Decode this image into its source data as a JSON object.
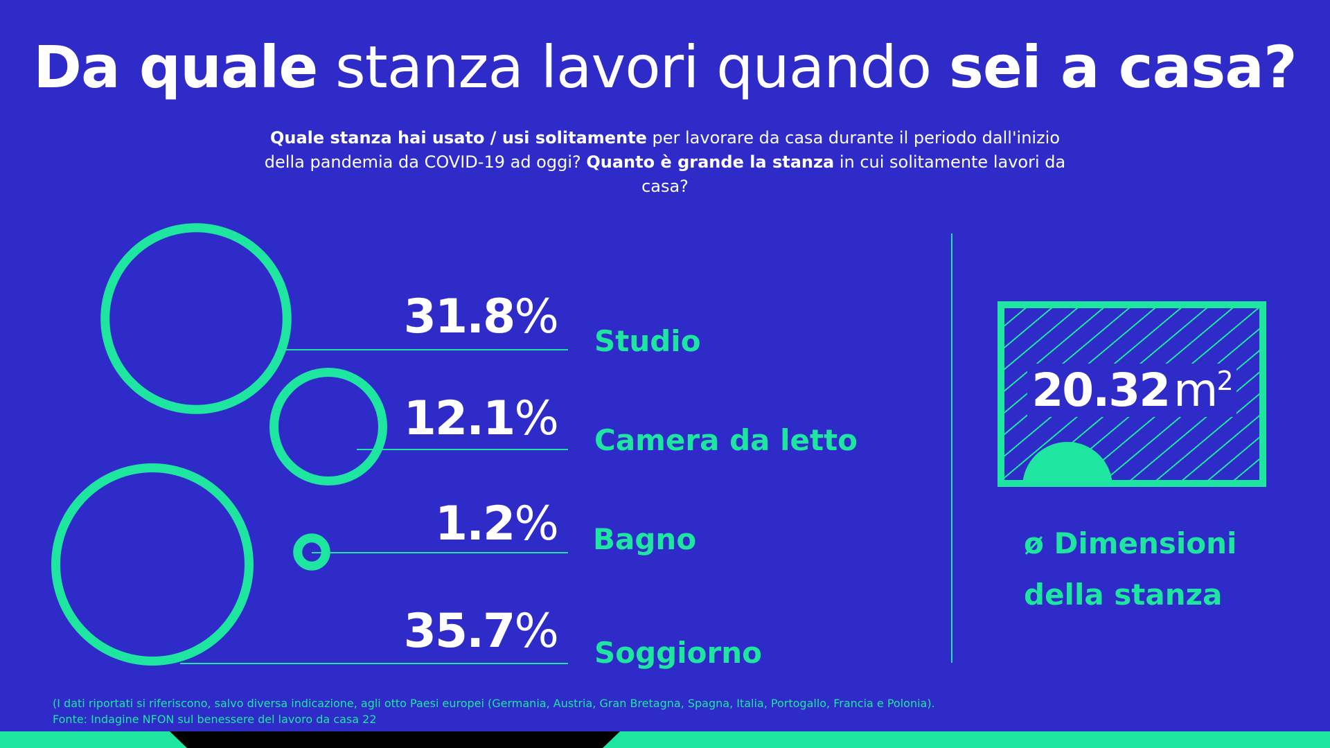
{
  "title": {
    "part1": "Da quale",
    "part2": " stanza lavori quando ",
    "part3": "sei a casa?"
  },
  "subtitle": {
    "b1": "Quale stanza hai usato / usi solitamente",
    "t1": " per lavorare da casa durante il periodo dall'inizio della pandemia da COVID-19 ad oggi? ",
    "b2": "Quanto è grande la stanza",
    "t2": " in cui solitamente lavori da casa?"
  },
  "chart_data": {
    "type": "bubble",
    "title": "Da quale stanza lavori quando sei a casa?",
    "unit": "%",
    "categories": [
      "Studio",
      "Camera da letto",
      "Bagno",
      "Soggiorno"
    ],
    "values": [
      31.8,
      12.1,
      1.2,
      35.7
    ],
    "value_labels": [
      "31.8",
      "12.1",
      "1.2",
      "35.7"
    ]
  },
  "room": {
    "value": "20.32",
    "unit": "m",
    "unit_exp": "2",
    "caption_line1": "ø Dimensioni",
    "caption_line2": "della stanza"
  },
  "footnote": {
    "line1": "(I dati riportati si riferiscono, salvo diversa indicazione, agli otto Paesi europei (Germania, Austria, Gran Bretagna, Spagna, Italia, Portogallo, Francia e Polonia).",
    "line2": "Fonte: Indagine NFON sul benessere del lavoro da casa 22"
  },
  "colors": {
    "background": "#2f2bc9",
    "accent": "#1ee6a0",
    "text": "#ffffff",
    "bar_dark": "#000000"
  }
}
